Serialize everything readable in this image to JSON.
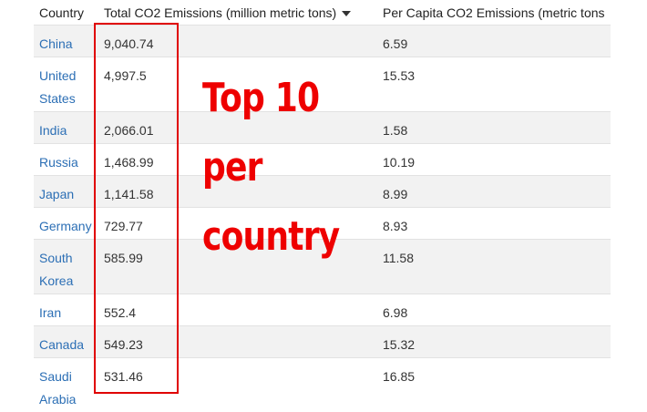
{
  "table": {
    "headers": {
      "country": "Country",
      "total": "Total CO2 Emissions (million metric tons)",
      "per_capita": "Per Capita CO2 Emissions (metric tons"
    },
    "rows": [
      {
        "country": "China",
        "total": "9,040.74",
        "per_capita": "6.59"
      },
      {
        "country": "United States",
        "total": "4,997.5",
        "per_capita": "15.53"
      },
      {
        "country": "India",
        "total": "2,066.01",
        "per_capita": "1.58"
      },
      {
        "country": "Russia",
        "total": "1,468.99",
        "per_capita": "10.19"
      },
      {
        "country": "Japan",
        "total": "1,141.58",
        "per_capita": "8.99"
      },
      {
        "country": "Germany",
        "total": "729.77",
        "per_capita": "8.93"
      },
      {
        "country": "South Korea",
        "total": "585.99",
        "per_capita": "11.58"
      },
      {
        "country": "Iran",
        "total": "552.4",
        "per_capita": "6.98"
      },
      {
        "country": "Canada",
        "total": "549.23",
        "per_capita": "15.32"
      },
      {
        "country": "Saudi Arabia",
        "total": "531.46",
        "per_capita": "16.85"
      }
    ]
  },
  "annotation": {
    "line1": "Top 10",
    "line2": "per",
    "line3": "country",
    "color": "#ee0000"
  },
  "colors": {
    "link": "#2c6fb5",
    "stripe": "#f2f2f2",
    "highlight_box": "#e00000"
  }
}
